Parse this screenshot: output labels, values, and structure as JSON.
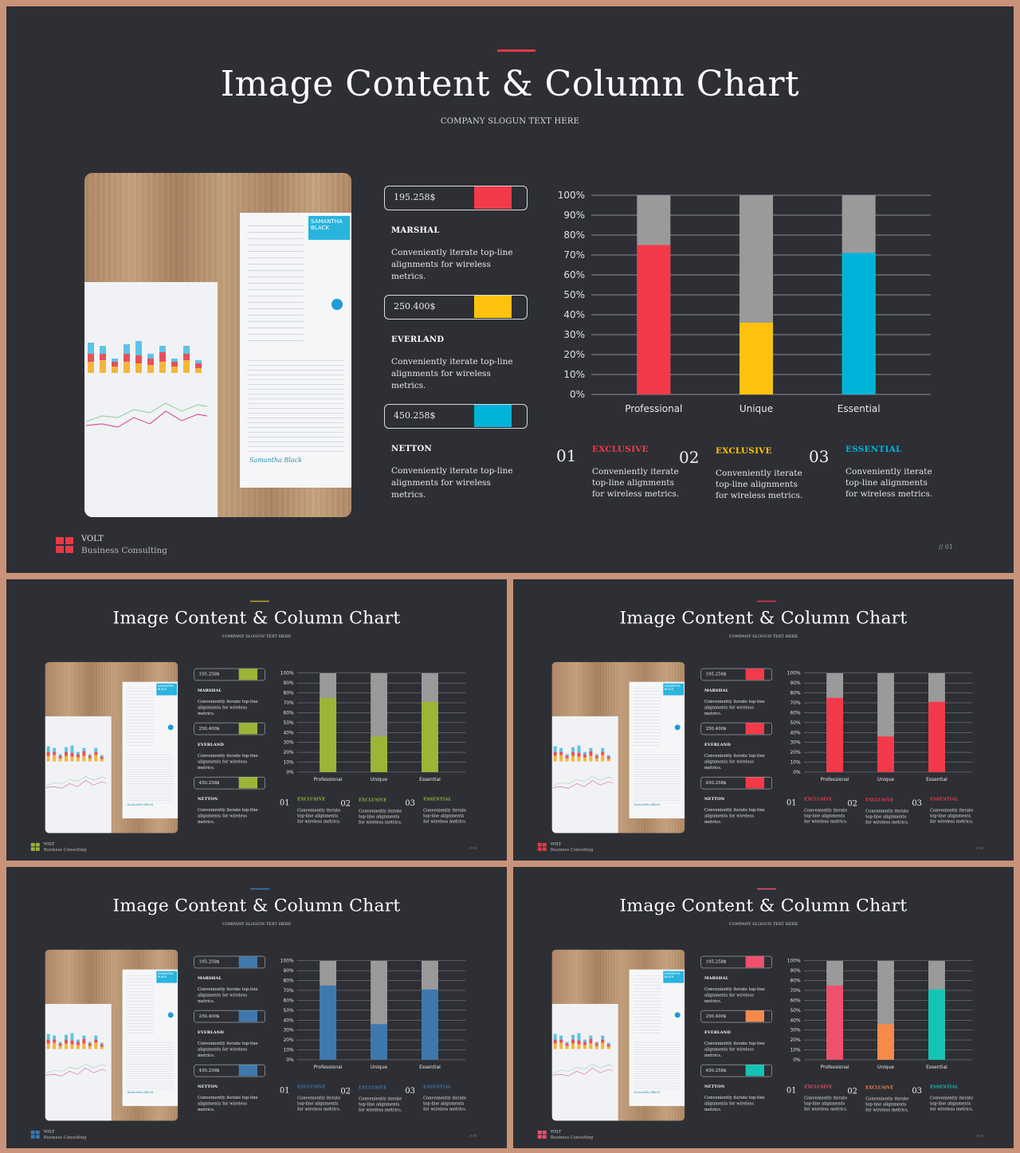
{
  "title": "Image Content & Column Chart",
  "slogan": "COMPANY SLOGUN TEXT HERE",
  "brand": {
    "name": "VOLT",
    "sub": "Business Consulting"
  },
  "page_number": "// 01",
  "photo": {
    "resume_name": "SAMANTHA BLACK",
    "signature": "Samantha Black"
  },
  "stats": [
    {
      "value": "195.258$",
      "name": "MARSHAL",
      "desc": "Conveniently iterate top-line alignments for wireless metrics."
    },
    {
      "value": "250.400$",
      "name": "EVERLAND",
      "desc": "Conveniently iterate top-line alignments for wireless metrics."
    },
    {
      "value": "450.258$",
      "name": "NETTON",
      "desc": "Conveniently iterate top-line alignments for wireless metrics."
    }
  ],
  "features": [
    {
      "num": "01",
      "title": "EXCLUSIVE",
      "desc": "Conveniently iterate top-line alignments for wireless metrics."
    },
    {
      "num": "02",
      "title": "EXCLUSIVE",
      "desc": "Conveniently iterate top-line alignments for wireless metrics."
    },
    {
      "num": "03",
      "title": "ESSENTIAL",
      "desc": "Conveniently iterate top-line alignments for wireless metrics."
    }
  ],
  "chart_data": {
    "type": "bar",
    "stacked_to_total": true,
    "categories": [
      "Professional",
      "Unique",
      "Essential"
    ],
    "values": [
      75,
      36,
      71
    ],
    "total": 100,
    "ylim": [
      0,
      100
    ],
    "yticks": [
      "0%",
      "10%",
      "20%",
      "30%",
      "40%",
      "50%",
      "60%",
      "70%",
      "80%",
      "90%",
      "100%"
    ],
    "grid": true,
    "remainder_color": "#9a9a9a"
  },
  "themes": [
    {
      "accent": "#e63946",
      "colors": [
        "#f23a4a",
        "#ffc20e",
        "#00b4d8"
      ],
      "logo": "#e63946"
    },
    {
      "accent": "#c9a227",
      "colors": [
        "#9bb536",
        "#9bb536",
        "#9bb536"
      ],
      "logo": "#9bb536"
    },
    {
      "accent": "#e63946",
      "colors": [
        "#f23a4a",
        "#f23a4a",
        "#f23a4a"
      ],
      "logo": "#e63946"
    },
    {
      "accent": "#3e7cb1",
      "colors": [
        "#3e78ad",
        "#3e78ad",
        "#3e78ad"
      ],
      "logo": "#3e78ad"
    },
    {
      "accent": "#f0506e",
      "colors": [
        "#f0506e",
        "#f7894a",
        "#13c4b4"
      ],
      "logo": "#f0506e"
    }
  ]
}
